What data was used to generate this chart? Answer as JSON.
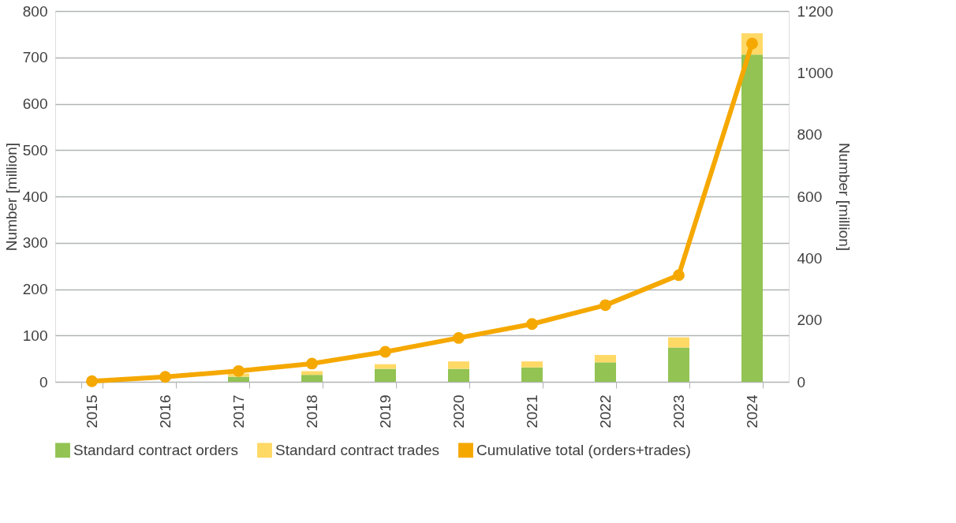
{
  "chart_data": {
    "type": "bar",
    "stacked": true,
    "categories": [
      "2015",
      "2016",
      "2017",
      "2018",
      "2019",
      "2020",
      "2021",
      "2022",
      "2023",
      "2024"
    ],
    "series": [
      {
        "name": "Standard contract orders",
        "color": "#92c353",
        "values": [
          null,
          null,
          11,
          15,
          28,
          28,
          31,
          42,
          74,
          706
        ]
      },
      {
        "name": "Standard contract trades",
        "color": "#ffd966",
        "values": [
          null,
          null,
          7,
          8,
          10,
          16,
          13,
          16,
          22,
          46
        ]
      },
      {
        "name": "Cumulative total (orders+trades)",
        "type": "line",
        "axis": "y2",
        "color": "#f5a800",
        "marker": "circle",
        "values": [
          2,
          16,
          35,
          59,
          97,
          142,
          187,
          248,
          345,
          1095
        ]
      }
    ],
    "ylabel": "Number [million]",
    "y2label": "Number [million]",
    "ylim": [
      0,
      800
    ],
    "yticks": [
      0,
      100,
      200,
      300,
      400,
      500,
      600,
      700,
      800
    ],
    "y2lim": [
      0,
      1200
    ],
    "y2ticks": [
      0,
      200,
      400,
      600,
      800,
      {
        "value": 1000,
        "label": "1'000"
      },
      {
        "value": 1200,
        "label": "1'200"
      }
    ],
    "grid": "y",
    "legend": "bottom"
  }
}
